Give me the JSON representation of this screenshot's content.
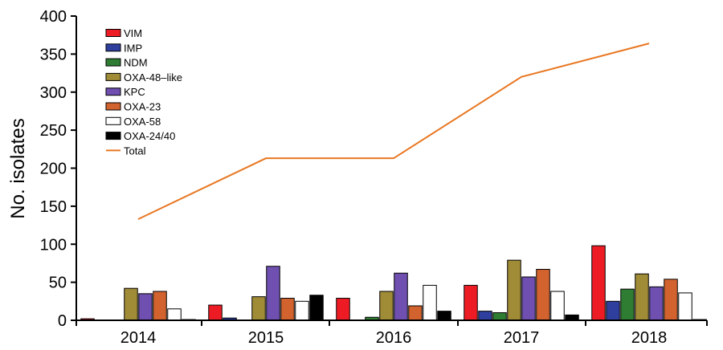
{
  "chart_data": {
    "type": "bar",
    "ylabel": "No. isolates",
    "ylim": [
      0,
      400
    ],
    "yticks": [
      0,
      50,
      100,
      150,
      200,
      250,
      300,
      350,
      400
    ],
    "categories": [
      "2014",
      "2015",
      "2016",
      "2017",
      "2018"
    ],
    "legend_position": "top-left",
    "grid": false,
    "series": [
      {
        "name": "VIM",
        "color": "#ed1c24",
        "values": [
          2,
          20,
          29,
          46,
          98
        ]
      },
      {
        "name": "IMP",
        "color": "#2e3f9e",
        "values": [
          0,
          3,
          0,
          12,
          25
        ]
      },
      {
        "name": "NDM",
        "color": "#2e7d32",
        "values": [
          0,
          0,
          4,
          10,
          41
        ]
      },
      {
        "name": "OXA-48–like",
        "color": "#a08b36",
        "values": [
          42,
          31,
          38,
          79,
          61
        ]
      },
      {
        "name": "KPC",
        "color": "#6f4fb0",
        "values": [
          35,
          71,
          62,
          57,
          44
        ]
      },
      {
        "name": "OXA-23",
        "color": "#d2622e",
        "values": [
          38,
          29,
          19,
          67,
          54
        ]
      },
      {
        "name": "OXA-58",
        "color": "#ffffff",
        "values": [
          15,
          25,
          46,
          38,
          36
        ]
      },
      {
        "name": "OXA-24/40",
        "color": "#000000",
        "values": [
          1,
          33,
          12,
          7,
          1
        ]
      }
    ],
    "line_series": {
      "name": "Total",
      "color": "#e87722",
      "values": [
        133,
        213,
        213,
        320,
        364
      ]
    }
  }
}
